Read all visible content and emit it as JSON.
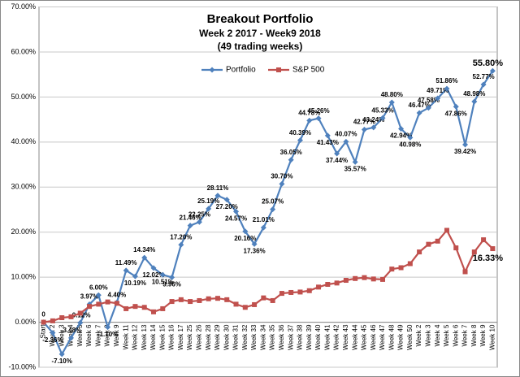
{
  "chart_data": {
    "type": "line",
    "title": "Breakout Portfolio",
    "subtitle": [
      "Week 2 2017 - Week9 2018",
      "(49 trading weeks)"
    ],
    "categories": [
      "Start",
      "Week 2",
      "Week 3",
      "Week 4",
      "Week 5",
      "Week 6",
      "Week 7",
      "Week 8",
      "Week 9",
      "Week 11",
      "Week 12",
      "Week 13",
      "Week 14",
      "Week 15",
      "Week 16",
      "Week 17",
      "Week 25",
      "Week 26",
      "Week 28",
      "Week 29",
      "Week 30",
      "Week 31",
      "Week 32",
      "Week 33",
      "Week 34",
      "Week 35",
      "Week 36",
      "Week 37",
      "Week 38",
      "Week 39",
      "Week 40",
      "Week 41",
      "Week 42",
      "Week 43",
      "Week 44",
      "Week 45",
      "Week 46",
      "Week 47",
      "Week 48",
      "Week 49",
      "Week 50",
      "Week 2",
      "Week 3",
      "Week 4",
      "Week 5",
      "Week 6",
      "Week 7",
      "Week 8",
      "Week 9",
      "Week 10"
    ],
    "series": [
      {
        "name": "Portfolio",
        "color": "#4f81bd",
        "marker": "diamond",
        "values": [
          0,
          -2.36,
          -7.1,
          -3.48,
          -0.12,
          3.97,
          6.0,
          -1.1,
          4.4,
          11.49,
          10.19,
          14.34,
          12.02,
          10.51,
          9.96,
          17.2,
          21.46,
          22.25,
          25.19,
          28.11,
          27.2,
          24.57,
          20.16,
          17.36,
          21.01,
          25.07,
          30.7,
          36.05,
          40.39,
          44.78,
          45.26,
          41.43,
          37.44,
          40.07,
          35.57,
          42.77,
          43.24,
          45.33,
          48.8,
          42.94,
          40.98,
          46.47,
          47.58,
          49.71,
          51.86,
          47.86,
          39.42,
          48.98,
          52.77,
          55.8
        ],
        "value_labels": [
          "0",
          "-2.36%",
          "-7.10%",
          "-3.48%",
          "-0.12%",
          "3.97%",
          "6.00%",
          "-1.10%",
          "4.40%",
          "11.49%",
          "10.19%",
          "14.34%",
          "12.02%",
          "10.51%",
          "9.96%",
          "17.20%",
          "21.46%",
          "22.25%",
          "25.19%",
          "28.11%",
          "27.20%",
          "24.57%",
          "20.16%",
          "17.36%",
          "21.01%",
          "25.07%",
          "30.70%",
          "36.05%",
          "40.39%",
          "44.78%",
          "45.26%",
          "41.43%",
          "37.44%",
          "40.07%",
          "35.57%",
          "42.77%",
          "43.24%",
          "45.33%",
          "48.80%",
          "42.94%",
          "40.98%",
          "46.47%",
          "47.58%",
          "49.71%",
          "51.86%",
          "47.86%",
          "39.42%",
          "48.98%",
          "52.77%",
          "55.80%"
        ]
      },
      {
        "name": "S&P 500",
        "color": "#c0504d",
        "marker": "square",
        "values": [
          0,
          0.3,
          1.0,
          1.2,
          2.0,
          3.5,
          4.0,
          4.5,
          4.2,
          3.0,
          3.5,
          3.3,
          2.3,
          3.0,
          4.6,
          5.0,
          4.6,
          4.8,
          5.2,
          5.3,
          5.0,
          4.0,
          3.3,
          3.9,
          5.4,
          4.8,
          6.4,
          6.6,
          6.7,
          7.0,
          7.8,
          8.4,
          8.7,
          9.3,
          9.7,
          9.9,
          9.6,
          9.5,
          11.8,
          12.1,
          13.0,
          15.6,
          17.3,
          18.0,
          20.4,
          16.5,
          11.2,
          15.6,
          18.3,
          16.33
        ],
        "value_labels": [
          null,
          null,
          null,
          null,
          null,
          null,
          null,
          null,
          null,
          null,
          null,
          null,
          null,
          null,
          null,
          null,
          null,
          null,
          null,
          null,
          null,
          null,
          null,
          null,
          null,
          null,
          null,
          null,
          null,
          null,
          null,
          null,
          null,
          null,
          null,
          null,
          null,
          null,
          null,
          null,
          null,
          null,
          null,
          null,
          null,
          null,
          null,
          null,
          null,
          "16.33%"
        ]
      }
    ],
    "ylim": [
      -10,
      70
    ],
    "yticks": [
      {
        "value": -10,
        "label": "-10.00%"
      },
      {
        "value": 0,
        "label": "0.00%"
      },
      {
        "value": 10,
        "label": "10.00%"
      },
      {
        "value": 20,
        "label": "20.00%"
      },
      {
        "value": 30,
        "label": "30.00%"
      },
      {
        "value": 40,
        "label": "40.00%"
      },
      {
        "value": 50,
        "label": "50.00%"
      },
      {
        "value": 60,
        "label": "60.00%"
      },
      {
        "value": 70,
        "label": "70.00%"
      }
    ],
    "grid": true,
    "legend": "top"
  }
}
